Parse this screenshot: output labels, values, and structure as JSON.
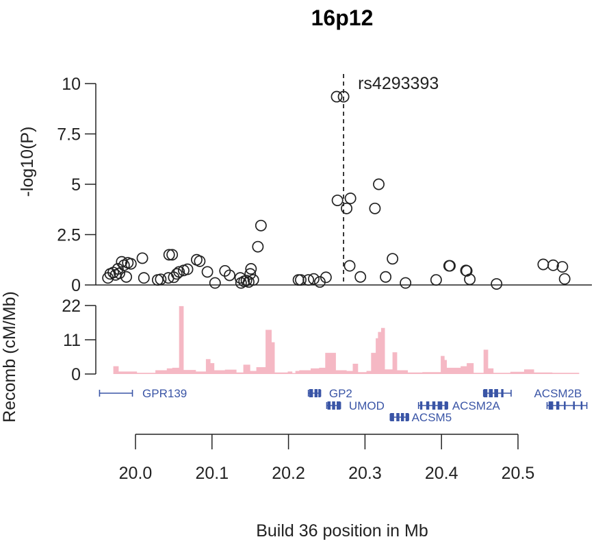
{
  "chart_data": {
    "type": "scatter",
    "title": "16p12",
    "xlabel": "Build 36 position in Mb",
    "ylabel_assoc": "-log10(P)",
    "ylabel_recomb": "Recomb (cM/Mb)",
    "xlim": [
      19.95,
      20.59
    ],
    "ylim_assoc": [
      0,
      10
    ],
    "ylim_recomb": [
      0,
      22
    ],
    "x_ticks": [
      20.0,
      20.1,
      20.2,
      20.3,
      20.4,
      20.5
    ],
    "x_tick_labels": [
      "20.0",
      "20.1",
      "20.2",
      "20.3",
      "20.4",
      "20.5"
    ],
    "y_ticks_assoc": [
      0,
      2.5,
      5,
      7.5,
      10
    ],
    "y_tick_labels_assoc": [
      "0",
      "2.5",
      "5",
      "7.5",
      "10"
    ],
    "y_ticks_recomb": [
      0,
      11,
      22
    ],
    "y_tick_labels_recomb": [
      "0",
      "11",
      "22"
    ],
    "lead_snp": {
      "label": "rs4293393",
      "x": 20.272
    },
    "snp_color": "#222222",
    "recomb_color": "#f5b8c4",
    "gene_color": "#3a55a6",
    "points": [
      {
        "x": 19.964,
        "y": 0.35
      },
      {
        "x": 19.967,
        "y": 0.55
      },
      {
        "x": 19.971,
        "y": 0.62
      },
      {
        "x": 19.974,
        "y": 0.5
      },
      {
        "x": 19.977,
        "y": 0.8
      },
      {
        "x": 19.979,
        "y": 0.58
      },
      {
        "x": 19.982,
        "y": 1.15
      },
      {
        "x": 19.985,
        "y": 0.98
      },
      {
        "x": 19.988,
        "y": 0.4
      },
      {
        "x": 19.99,
        "y": 1.1
      },
      {
        "x": 19.994,
        "y": 1.05
      },
      {
        "x": 20.009,
        "y": 1.33
      },
      {
        "x": 20.011,
        "y": 0.35
      },
      {
        "x": 20.029,
        "y": 0.25
      },
      {
        "x": 20.033,
        "y": 0.28
      },
      {
        "x": 20.043,
        "y": 0.35
      },
      {
        "x": 20.044,
        "y": 1.5
      },
      {
        "x": 20.048,
        "y": 1.5
      },
      {
        "x": 20.05,
        "y": 0.38
      },
      {
        "x": 20.054,
        "y": 0.55
      },
      {
        "x": 20.057,
        "y": 0.65
      },
      {
        "x": 20.063,
        "y": 0.72
      },
      {
        "x": 20.068,
        "y": 0.78
      },
      {
        "x": 20.08,
        "y": 1.25
      },
      {
        "x": 20.084,
        "y": 1.18
      },
      {
        "x": 20.094,
        "y": 0.65
      },
      {
        "x": 20.104,
        "y": 0.1
      },
      {
        "x": 20.117,
        "y": 0.7
      },
      {
        "x": 20.123,
        "y": 0.48
      },
      {
        "x": 20.137,
        "y": 0.35
      },
      {
        "x": 20.138,
        "y": 0.1
      },
      {
        "x": 20.142,
        "y": 0.18
      },
      {
        "x": 20.145,
        "y": 0.22
      },
      {
        "x": 20.148,
        "y": 0.15
      },
      {
        "x": 20.15,
        "y": 0.55
      },
      {
        "x": 20.151,
        "y": 0.8
      },
      {
        "x": 20.154,
        "y": 0.25
      },
      {
        "x": 20.16,
        "y": 1.9
      },
      {
        "x": 20.164,
        "y": 2.95
      },
      {
        "x": 20.213,
        "y": 0.25
      },
      {
        "x": 20.216,
        "y": 0.25
      },
      {
        "x": 20.226,
        "y": 0.25
      },
      {
        "x": 20.233,
        "y": 0.3
      },
      {
        "x": 20.241,
        "y": 0.15
      },
      {
        "x": 20.249,
        "y": 0.38
      },
      {
        "x": 20.263,
        "y": 9.35
      },
      {
        "x": 20.272,
        "y": 9.35
      },
      {
        "x": 20.264,
        "y": 4.2
      },
      {
        "x": 20.276,
        "y": 3.8
      },
      {
        "x": 20.281,
        "y": 4.3
      },
      {
        "x": 20.28,
        "y": 0.95
      },
      {
        "x": 20.294,
        "y": 0.4
      },
      {
        "x": 20.313,
        "y": 3.8
      },
      {
        "x": 20.318,
        "y": 5.0
      },
      {
        "x": 20.327,
        "y": 0.4
      },
      {
        "x": 20.336,
        "y": 1.3
      },
      {
        "x": 20.353,
        "y": 0.1
      },
      {
        "x": 20.393,
        "y": 0.25
      },
      {
        "x": 20.41,
        "y": 0.95
      },
      {
        "x": 20.411,
        "y": 0.95
      },
      {
        "x": 20.432,
        "y": 0.72
      },
      {
        "x": 20.433,
        "y": 0.7
      },
      {
        "x": 20.437,
        "y": 0.28
      },
      {
        "x": 20.472,
        "y": 0.05
      },
      {
        "x": 20.533,
        "y": 1.02
      },
      {
        "x": 20.546,
        "y": 0.98
      },
      {
        "x": 20.558,
        "y": 0.9
      },
      {
        "x": 20.561,
        "y": 0.3
      }
    ],
    "recomb": [
      [
        19.971,
        0
      ],
      [
        19.971,
        2.5
      ],
      [
        19.978,
        2.5
      ],
      [
        19.978,
        0.8
      ],
      [
        20.002,
        0.8
      ],
      [
        20.002,
        0.4
      ],
      [
        20.026,
        0.4
      ],
      [
        20.026,
        1.2
      ],
      [
        20.041,
        1.2
      ],
      [
        20.041,
        1.8
      ],
      [
        20.048,
        1.8
      ],
      [
        20.048,
        2.0
      ],
      [
        20.057,
        2.0
      ],
      [
        20.057,
        21.8
      ],
      [
        20.063,
        21.8
      ],
      [
        20.063,
        1.3
      ],
      [
        20.079,
        1.3
      ],
      [
        20.079,
        0.8
      ],
      [
        20.092,
        0.8
      ],
      [
        20.092,
        4.8
      ],
      [
        20.098,
        4.8
      ],
      [
        20.098,
        3.5
      ],
      [
        20.103,
        3.5
      ],
      [
        20.103,
        1.2
      ],
      [
        20.117,
        1.2
      ],
      [
        20.117,
        1.4
      ],
      [
        20.132,
        1.4
      ],
      [
        20.132,
        0.5
      ],
      [
        20.141,
        0.5
      ],
      [
        20.141,
        3.0
      ],
      [
        20.15,
        3.0
      ],
      [
        20.15,
        1.0
      ],
      [
        20.158,
        1.0
      ],
      [
        20.158,
        2.2
      ],
      [
        20.17,
        2.2
      ],
      [
        20.17,
        14.2
      ],
      [
        20.178,
        14.2
      ],
      [
        20.178,
        10.2
      ],
      [
        20.182,
        10.2
      ],
      [
        20.182,
        0.5
      ],
      [
        20.199,
        0.5
      ],
      [
        20.199,
        0.8
      ],
      [
        20.205,
        0.8
      ],
      [
        20.205,
        0.3
      ],
      [
        20.209,
        0.3
      ],
      [
        20.209,
        1.0
      ],
      [
        20.214,
        1.0
      ],
      [
        20.214,
        1.2
      ],
      [
        20.229,
        1.2
      ],
      [
        20.229,
        1.8
      ],
      [
        20.24,
        1.8
      ],
      [
        20.24,
        2.0
      ],
      [
        20.248,
        2.0
      ],
      [
        20.248,
        6.8
      ],
      [
        20.262,
        6.8
      ],
      [
        20.262,
        1.2
      ],
      [
        20.276,
        1.2
      ],
      [
        20.276,
        1.0
      ],
      [
        20.284,
        1.0
      ],
      [
        20.284,
        3.3
      ],
      [
        20.291,
        3.3
      ],
      [
        20.291,
        0.6
      ],
      [
        20.302,
        0.6
      ],
      [
        20.302,
        1.0
      ],
      [
        20.308,
        1.0
      ],
      [
        20.308,
        6.8
      ],
      [
        20.314,
        6.8
      ],
      [
        20.314,
        11.5
      ],
      [
        20.317,
        11.5
      ],
      [
        20.317,
        13.5
      ],
      [
        20.321,
        13.5
      ],
      [
        20.321,
        14.8
      ],
      [
        20.326,
        14.8
      ],
      [
        20.326,
        1.5
      ],
      [
        20.336,
        1.5
      ],
      [
        20.336,
        7.0
      ],
      [
        20.342,
        7.0
      ],
      [
        20.342,
        1.2
      ],
      [
        20.356,
        1.2
      ],
      [
        20.356,
        0.5
      ],
      [
        20.375,
        0.5
      ],
      [
        20.375,
        0.6
      ],
      [
        20.399,
        0.6
      ],
      [
        20.399,
        5.8
      ],
      [
        20.404,
        5.8
      ],
      [
        20.404,
        4.5
      ],
      [
        20.407,
        4.5
      ],
      [
        20.407,
        2.0
      ],
      [
        20.425,
        2.0
      ],
      [
        20.425,
        2.5
      ],
      [
        20.433,
        2.5
      ],
      [
        20.433,
        3.5
      ],
      [
        20.442,
        3.5
      ],
      [
        20.442,
        0.4
      ],
      [
        20.455,
        0.4
      ],
      [
        20.455,
        7.8
      ],
      [
        20.461,
        7.8
      ],
      [
        20.461,
        1.8
      ],
      [
        20.468,
        1.8
      ],
      [
        20.468,
        0.4
      ],
      [
        20.49,
        0.4
      ],
      [
        20.49,
        0.7
      ],
      [
        20.508,
        0.7
      ],
      [
        20.508,
        1.5
      ],
      [
        20.521,
        1.5
      ],
      [
        20.521,
        0.5
      ],
      [
        20.545,
        0.5
      ],
      [
        20.545,
        0.4
      ],
      [
        20.58,
        0.4
      ],
      [
        20.58,
        0
      ]
    ],
    "genes": [
      {
        "name": "GPR139",
        "start": 19.953,
        "end": 19.996,
        "row": 0,
        "exons": [],
        "label_x": 20.009,
        "label_anchor": "start"
      },
      {
        "name": "GP2",
        "start": 20.226,
        "end": 20.242,
        "row": 0,
        "exons": [
          [
            20.227,
            20.232
          ],
          [
            20.234,
            20.238
          ],
          [
            20.239,
            20.242
          ]
        ],
        "label_x": 20.253,
        "label_anchor": "start"
      },
      {
        "name": "UMOD",
        "start": 20.25,
        "end": 20.268,
        "row": 1,
        "exons": [
          [
            20.251,
            20.255
          ],
          [
            20.257,
            20.261
          ],
          [
            20.263,
            20.268
          ]
        ],
        "label_x": 20.279,
        "label_anchor": "start"
      },
      {
        "name": "ACSM5",
        "start": 20.333,
        "end": 20.357,
        "row": 2,
        "exons": [
          [
            20.333,
            20.338
          ],
          [
            20.341,
            20.345
          ],
          [
            20.347,
            20.351
          ],
          [
            20.353,
            20.357
          ]
        ],
        "label_x": 20.361,
        "label_anchor": "start"
      },
      {
        "name": "ACSM2A",
        "start": 20.37,
        "end": 20.408,
        "row": 1,
        "exons": [
          [
            20.372,
            20.375
          ],
          [
            20.38,
            20.384
          ],
          [
            20.388,
            20.392
          ],
          [
            20.395,
            20.401
          ],
          [
            20.404,
            20.408
          ]
        ],
        "label_x": 20.414,
        "label_anchor": "start"
      },
      {
        "name": "ACSM2B",
        "start": 20.455,
        "end": 20.491,
        "row": 0,
        "exons": [
          [
            20.455,
            20.46
          ],
          [
            20.462,
            20.467
          ],
          [
            20.469,
            20.474
          ],
          [
            20.478,
            20.481
          ]
        ],
        "label_x": 20.521,
        "label_anchor": "start"
      },
      {
        "name": "",
        "start": 20.538,
        "end": 20.59,
        "row": 1,
        "exons": [
          [
            20.54,
            20.546
          ],
          [
            20.55,
            20.554
          ],
          [
            20.56,
            20.562
          ],
          [
            20.572,
            20.574
          ],
          [
            20.582,
            20.584
          ]
        ],
        "label_x": 20.5,
        "label_anchor": "start"
      }
    ]
  }
}
